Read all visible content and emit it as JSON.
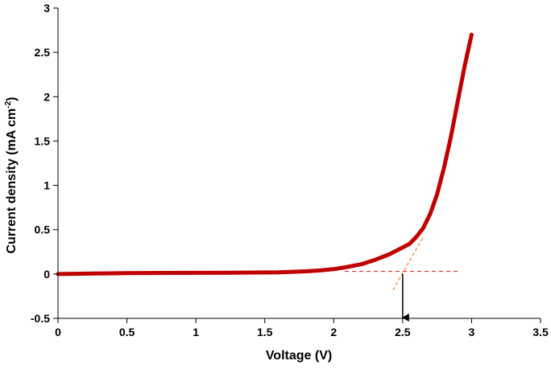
{
  "chart_data": {
    "type": "line",
    "title": "",
    "xlabel": "Voltage (V)",
    "ylabel_main": "Current density (mA cm",
    "ylabel_sup": "-2",
    "ylabel_close": ")",
    "xlim": [
      0,
      3.5
    ],
    "ylim": [
      -0.5,
      3
    ],
    "x_ticks": [
      "0",
      "0.5",
      "1",
      "1.5",
      "2",
      "2.5",
      "3",
      "3.5"
    ],
    "y_ticks": [
      "-0.5",
      "0",
      "0.5",
      "1",
      "1.5",
      "2",
      "2.5",
      "3"
    ],
    "grid": false,
    "legend": "none",
    "colors": {
      "series": "#c00000",
      "baseline": "#e03030",
      "tangent": "#f08a3c",
      "arrow": "#000000"
    },
    "series": [
      {
        "x": [
          0.0,
          0.25,
          0.5,
          0.75,
          1.0,
          1.25,
          1.5,
          1.6,
          1.7,
          1.8,
          1.9,
          2.0,
          2.1,
          2.2,
          2.3,
          2.4,
          2.5,
          2.55,
          2.6,
          2.65,
          2.7,
          2.75,
          2.8,
          2.85,
          2.9,
          2.95,
          3.0
        ],
        "y": [
          0.0,
          0.005,
          0.01,
          0.012,
          0.013,
          0.015,
          0.018,
          0.02,
          0.025,
          0.03,
          0.04,
          0.055,
          0.08,
          0.11,
          0.16,
          0.22,
          0.3,
          0.34,
          0.42,
          0.52,
          0.68,
          0.9,
          1.2,
          1.55,
          1.95,
          2.35,
          2.7
        ]
      }
    ],
    "annotations": {
      "baseline": {
        "x": [
          2.08,
          2.92
        ],
        "y": [
          0.03,
          0.03
        ]
      },
      "tangent": {
        "x": [
          2.43,
          2.65
        ],
        "y": [
          -0.18,
          0.42
        ]
      },
      "arrow": {
        "x": 2.5,
        "y_start": 0.0,
        "y_end": -0.5
      }
    }
  }
}
